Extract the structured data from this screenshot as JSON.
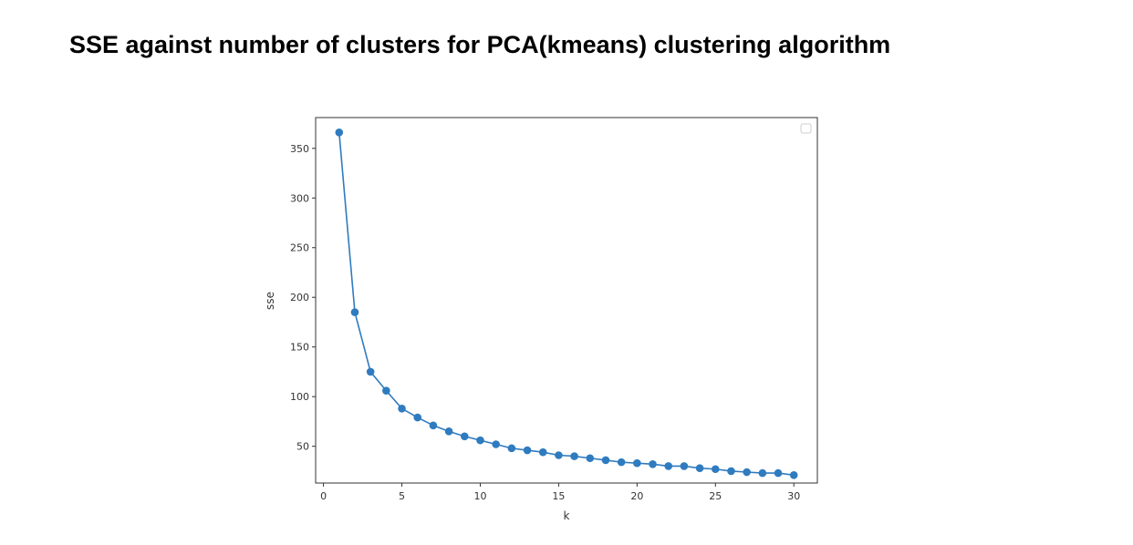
{
  "slide": {
    "title": "SSE against number of clusters for PCA(kmeans) clustering algorithm"
  },
  "chart_data": {
    "type": "line",
    "title": "",
    "xlabel": "k",
    "ylabel": "sse",
    "xlim": [
      -0.5,
      31.5
    ],
    "ylim": [
      13,
      381
    ],
    "x_ticks": [
      0,
      5,
      10,
      15,
      20,
      25,
      30
    ],
    "y_ticks": [
      50,
      100,
      150,
      200,
      250,
      300,
      350
    ],
    "grid": false,
    "legend": "top-right, empty",
    "line_color": "#2f7bbf",
    "marker": "circle",
    "series": [
      {
        "x": [
          1,
          2,
          3,
          4,
          5,
          6,
          7,
          8,
          9,
          10,
          11,
          12,
          13,
          14,
          15,
          16,
          17,
          18,
          19,
          20,
          21,
          22,
          23,
          24,
          25,
          26,
          27,
          28,
          29,
          30
        ],
        "values": [
          366,
          185,
          125,
          106,
          88,
          79,
          71,
          65,
          60,
          56,
          52,
          48,
          46,
          44,
          41,
          40,
          38,
          36,
          34,
          33,
          32,
          30,
          30,
          28,
          27,
          25,
          24,
          23,
          23,
          21
        ]
      }
    ]
  }
}
